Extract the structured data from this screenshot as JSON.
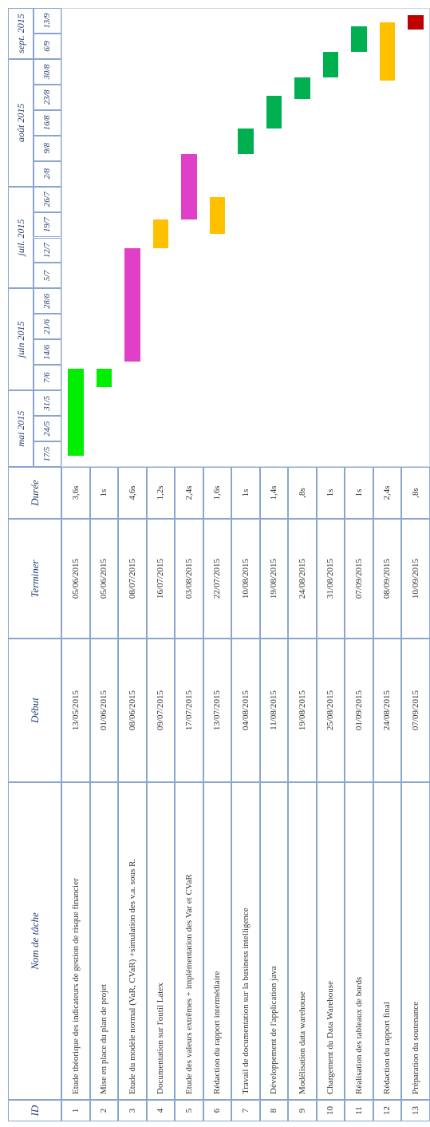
{
  "headers": {
    "id": "ID",
    "name": "Nom de tâche",
    "start": "Début",
    "end": "Terminer",
    "duration": "Durée"
  },
  "months": [
    "mai 2015",
    "juin 2015",
    "juil. 2015",
    "août 2015",
    "sept. 2015"
  ],
  "weeks": [
    "17/5",
    "24/5",
    "31/5",
    "7/6",
    "14/6",
    "21/6",
    "28/6",
    "5/7",
    "12/7",
    "19/7",
    "26/7",
    "2/8",
    "9/8",
    "16/8",
    "23/8",
    "30/8",
    "6/9",
    "13/9"
  ],
  "tasks": [
    {
      "id": "1",
      "name": "Etude théorique des indicateurs de gestion de risque financier",
      "start": "13/05/2015",
      "end": "05/06/2015",
      "duration": "3,6s",
      "color": "#00ee00"
    },
    {
      "id": "2",
      "name": "Mise en place du plan de projet",
      "start": "01/06/2015",
      "end": "05/06/2015",
      "duration": "1s",
      "color": "#00ee00"
    },
    {
      "id": "3",
      "name": "Etude du modèle normal (VaR, CVaR) +simulation des v.a. sous R.",
      "start": "08/06/2015",
      "end": "08/07/2015",
      "duration": "4,6s",
      "color": "#e040c8"
    },
    {
      "id": "4",
      "name": "Documentation sur l'outil Latex",
      "start": "09/07/2015",
      "end": "16/07/2015",
      "duration": "1,2s",
      "color": "#ffc000"
    },
    {
      "id": "5",
      "name": "Etude des valeurs extrêmes + implémentation des Var et CVaR",
      "start": "17/07/2015",
      "end": "03/08/2015",
      "duration": "2,4s",
      "color": "#e040c8"
    },
    {
      "id": "6",
      "name": "Rédaction du rapport intermédiaire",
      "start": "13/07/2015",
      "end": "22/07/2015",
      "duration": "1,6s",
      "color": "#ffc000"
    },
    {
      "id": "7",
      "name": "Travail de documentation sur la business intelligence",
      "start": "04/08/2015",
      "end": "10/08/2015",
      "duration": "1s",
      "color": "#00b050"
    },
    {
      "id": "8",
      "name": "Développement de l'application java",
      "start": "11/08/2015",
      "end": "19/08/2015",
      "duration": "1,4s",
      "color": "#00b050"
    },
    {
      "id": "9",
      "name": "Modélisation data warehouse",
      "start": "19/08/2015",
      "end": "24/08/2015",
      "duration": ",8s",
      "color": "#00b050"
    },
    {
      "id": "10",
      "name": "Chargement du Data Warehouse",
      "start": "25/08/2015",
      "end": "31/08/2015",
      "duration": "1s",
      "color": "#00b050"
    },
    {
      "id": "11",
      "name": "Réalisation des tableaux de bords",
      "start": "01/09/2015",
      "end": "07/09/2015",
      "duration": "1s",
      "color": "#00b050"
    },
    {
      "id": "12",
      "name": "Rédaction du rapport final",
      "start": "24/08/2015",
      "end": "08/09/2015",
      "duration": "2,4s",
      "color": "#ffc000"
    },
    {
      "id": "13",
      "name": "Préparation du soutenance",
      "start": "07/09/2015",
      "end": "10/09/2015",
      "duration": ",8s",
      "color": "#c00000"
    }
  ]
}
